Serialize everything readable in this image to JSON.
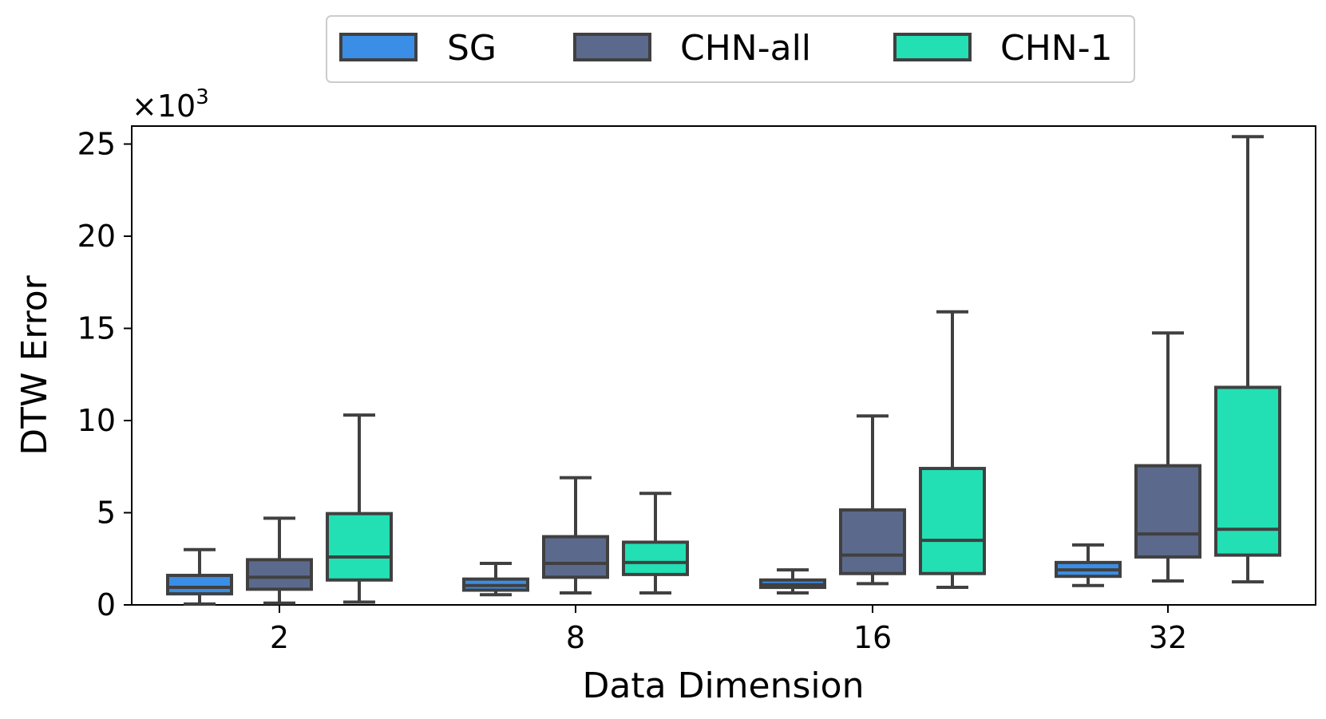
{
  "chart_data": {
    "type": "box",
    "xlabel": "Data Dimension",
    "ylabel": "DTW Error",
    "y_scale_prefix": "×10",
    "y_scale_exponent": "3",
    "ylim": [
      0,
      26
    ],
    "yticks": [
      0,
      5,
      10,
      15,
      20,
      25
    ],
    "categories": [
      "2",
      "8",
      "16",
      "32"
    ],
    "legend_position": "top-center",
    "grid": false,
    "series": [
      {
        "name": "SG",
        "color": "#3a8ee6",
        "boxes": [
          {
            "min": 0.05,
            "q1": 0.6,
            "median": 0.95,
            "q3": 1.6,
            "max": 3.0
          },
          {
            "min": 0.55,
            "q1": 0.8,
            "median": 1.05,
            "q3": 1.4,
            "max": 2.25
          },
          {
            "min": 0.65,
            "q1": 0.95,
            "median": 1.1,
            "q3": 1.35,
            "max": 1.9
          },
          {
            "min": 1.05,
            "q1": 1.55,
            "median": 1.9,
            "q3": 2.3,
            "max": 3.25
          }
        ]
      },
      {
        "name": "CHN-all",
        "color": "#5b6a8c",
        "boxes": [
          {
            "min": 0.1,
            "q1": 0.85,
            "median": 1.5,
            "q3": 2.45,
            "max": 4.7
          },
          {
            "min": 0.65,
            "q1": 1.5,
            "median": 2.25,
            "q3": 3.7,
            "max": 6.9
          },
          {
            "min": 1.15,
            "q1": 1.7,
            "median": 2.7,
            "q3": 5.15,
            "max": 10.25
          },
          {
            "min": 1.3,
            "q1": 2.6,
            "median": 3.85,
            "q3": 7.55,
            "max": 14.75
          }
        ]
      },
      {
        "name": "CHN-1",
        "color": "#22e0b4",
        "boxes": [
          {
            "min": 0.15,
            "q1": 1.35,
            "median": 2.6,
            "q3": 4.95,
            "max": 10.3
          },
          {
            "min": 0.65,
            "q1": 1.65,
            "median": 2.3,
            "q3": 3.4,
            "max": 6.05
          },
          {
            "min": 0.95,
            "q1": 1.7,
            "median": 3.5,
            "q3": 7.4,
            "max": 15.9
          },
          {
            "min": 1.25,
            "q1": 2.7,
            "median": 4.1,
            "q3": 11.8,
            "max": 25.4
          }
        ]
      }
    ]
  }
}
